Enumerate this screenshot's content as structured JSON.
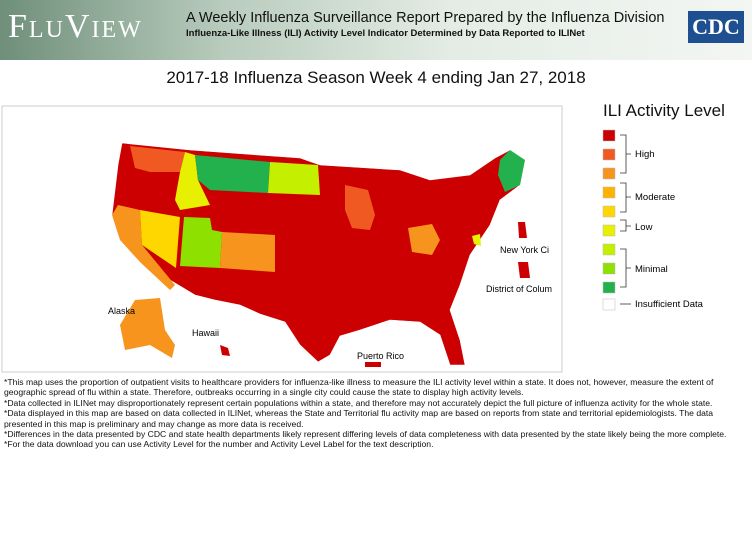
{
  "header": {
    "brand": "FluView",
    "title": "A Weekly Influenza Surveillance Report Prepared by the Influenza Division",
    "subtitle": "Influenza-Like Illness (ILI) Activity Level Indicator Determined by Data Reported to ILINet",
    "logo": "CDC"
  },
  "map": {
    "title": "2017-18 Influenza Season Week 4 ending Jan 27, 2018",
    "labels": [
      "Alaska",
      "Hawaii",
      "Puerto Rico",
      "New York Ci",
      "District of Colum"
    ]
  },
  "legend": {
    "title": "ILI Activity Level",
    "groups": [
      "High",
      "Moderate",
      "Low",
      "Minimal"
    ],
    "insufficient": "Insufficient Data"
  },
  "notes": [
    "*This map uses the proportion of outpatient visits to healthcare providers for influenza-like illness to measure the ILI activity level within a state. It does not, however, measure the extent of geographic spread of flu within a state. Therefore, outbreaks occurring in a single city could cause the state to display high activity levels.",
    "*Data collected in ILINet may disproportionately represent certain populations within a state, and therefore may not accurately depict the full picture of influenza activity for the whole state.",
    "*Data displayed in this map are based on data collected in ILINet, whereas the State and Territorial flu activity map are based on reports from state and territorial epidemiologists. The data presented in this map is preliminary and may change as more data is received.",
    "*Differences in the data presented by CDC and state health departments likely represent differing levels of data completeness with data presented by the state likely being the more complete.",
    "*For the data download you can use Activity Level for the number and Activity Level Label for the text description."
  ]
}
